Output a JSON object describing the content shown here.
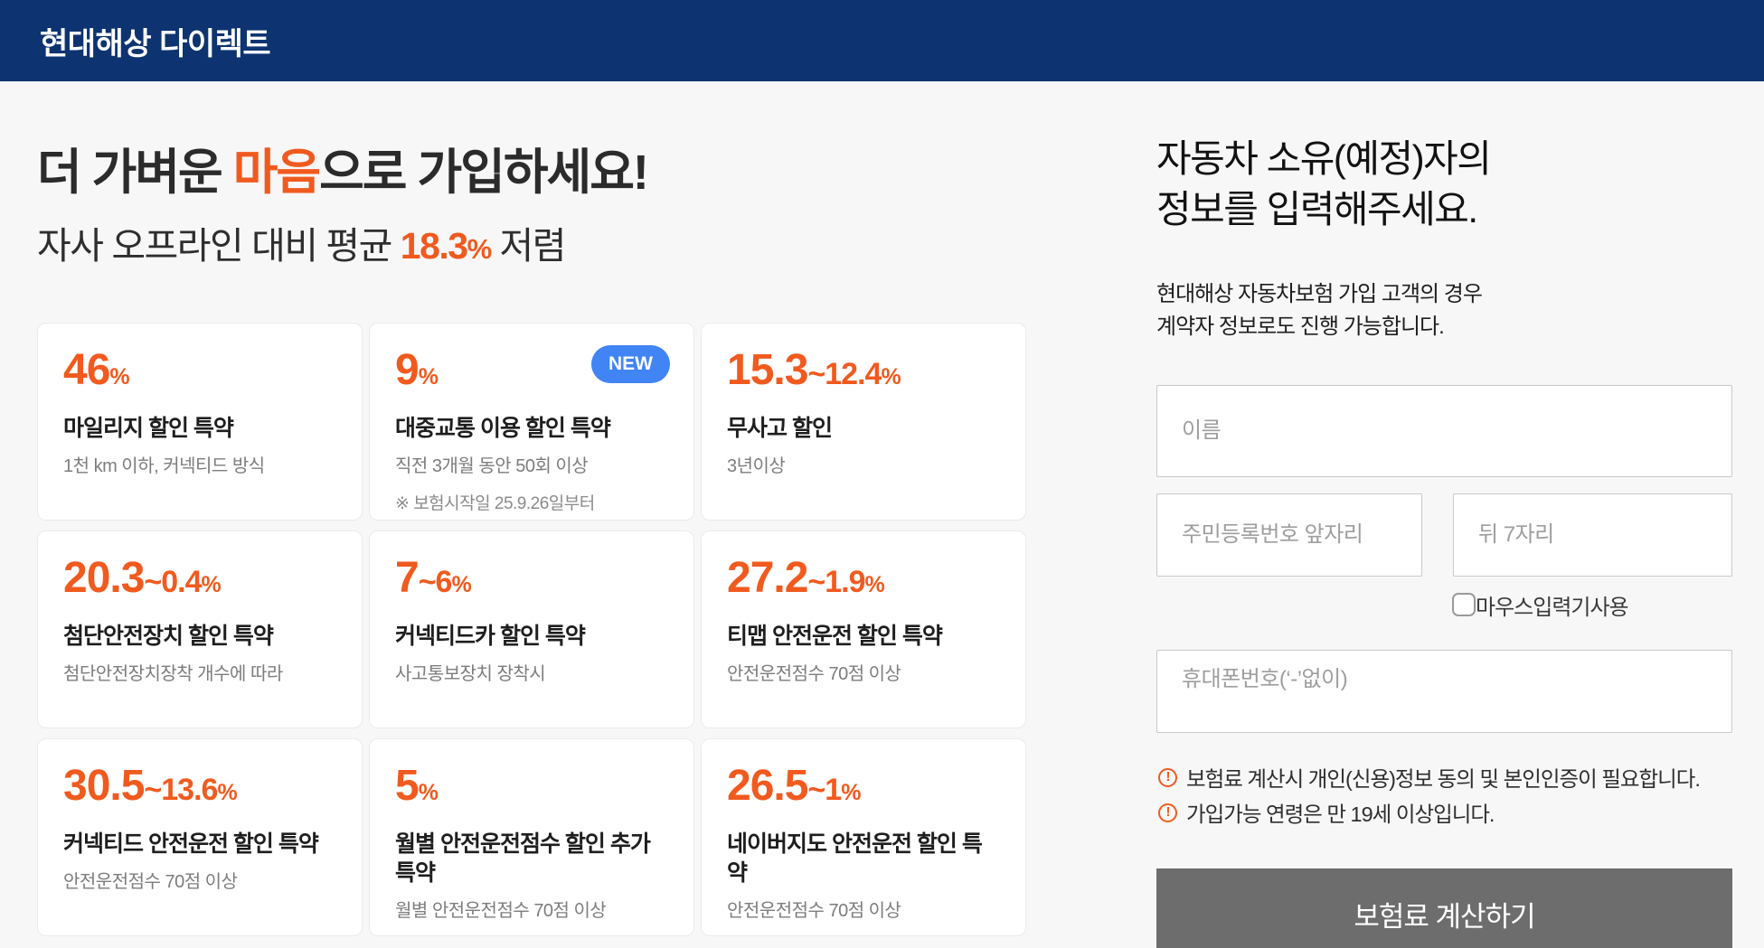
{
  "header": {
    "logo": "현대해상 다이렉트"
  },
  "hero": {
    "title_pre": "더 가벼운 ",
    "title_highlight": "마음",
    "title_post": "으로 가입하세요!",
    "subtitle_pre": "자사 오프라인 대비 평균 ",
    "subtitle_highlight": "18.3",
    "subtitle_pct": "%",
    "subtitle_post": " 저렴"
  },
  "cards": [
    {
      "value": "46",
      "suffix": "%",
      "title": "마일리지 할인 특약",
      "desc": "1천 km 이하, 커넥티드 방식"
    },
    {
      "value": "9",
      "suffix": "%",
      "badge": "NEW",
      "title": "대중교통 이용 할인 특약",
      "desc": "직전 3개월 동안 50회 이상",
      "note": "※ 보험시작일 25.9.26일부터"
    },
    {
      "value": "15.3",
      "range": "~12.4",
      "suffix": "%",
      "title": "무사고 할인",
      "desc": "3년이상"
    },
    {
      "value": "20.3",
      "range": "~0.4",
      "suffix": "%",
      "title": "첨단안전장치 할인 특약",
      "desc": "첨단안전장치장착 개수에 따라"
    },
    {
      "value": "7",
      "range": "~6",
      "suffix": "%",
      "title": "커넥티드카 할인 특약",
      "desc": "사고통보장치 장착시"
    },
    {
      "value": "27.2",
      "range": "~1.9",
      "suffix": "%",
      "title": "티맵 안전운전 할인 특약",
      "desc": "안전운전점수 70점 이상"
    },
    {
      "value": "30.5",
      "range": "~13.6",
      "suffix": "%",
      "title": "커넥티드 안전운전 할인 특약",
      "desc": "안전운전점수 70점 이상"
    },
    {
      "value": "5",
      "suffix": "%",
      "title": "월별 안전운전점수 할인 추가 특약",
      "desc": "월별 안전운전점수 70점 이상"
    },
    {
      "value": "26.5",
      "range": "~1",
      "suffix": "%",
      "title": "네이버지도 안전운전 할인 특약",
      "desc": "안전운전점수 70점 이상"
    }
  ],
  "form": {
    "title_line1": "자동차 소유(예정)자의",
    "title_line2": "정보를 입력해주세요.",
    "subtitle_line1": "현대해상 자동차보험 가입 고객의 경우",
    "subtitle_line2": "계약자 정보로도 진행 가능합니다.",
    "name_placeholder": "이름",
    "rrn_front_placeholder": "주민등록번호 앞자리",
    "rrn_back_placeholder": "뒤 7자리",
    "mouse_input_label": "마우스입력기사용",
    "phone_placeholder": "휴대폰번호(‘-’없이)",
    "notices": [
      "보험료 계산시 개인(신용)정보 동의 및 본인인증이 필요합니다.",
      "가입가능 연령은 만 19세 이상입니다."
    ],
    "submit_label": "보험료 계산하기"
  },
  "colors": {
    "navy": "#0d3470",
    "orange": "#f15a1e",
    "badge_blue": "#4184f3",
    "button_gray": "#6d6d6d"
  }
}
